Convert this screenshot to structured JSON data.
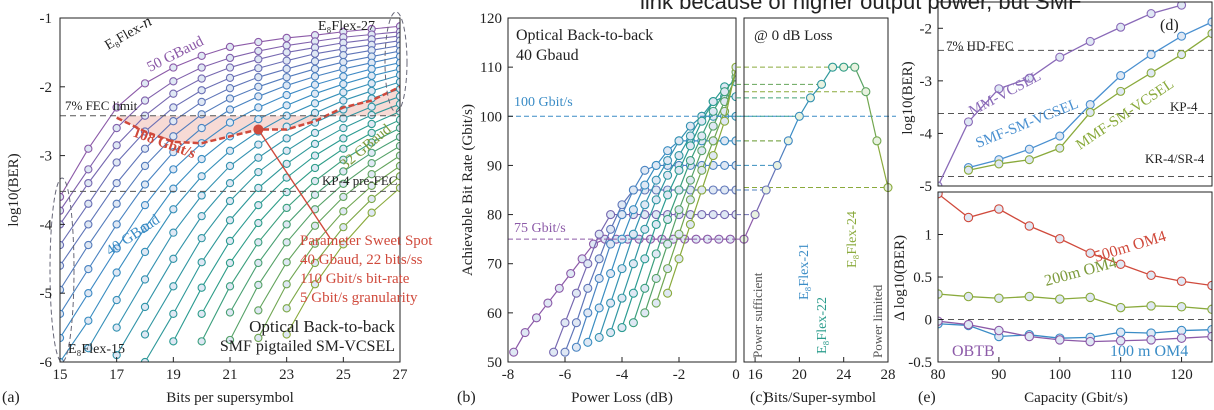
{
  "header_fragment": "link because of higher output power, but SMF",
  "colors": {
    "purple": "#8c5aa8",
    "blue": "#3a8cc6",
    "teal": "#2a9c8c",
    "green": "#8aaa3c",
    "olive": "#7c9a3a",
    "red": "#d04a3c",
    "red_fill": "#f6d6d0",
    "mm_purple": "#8a6ab8",
    "smf_blue": "#4a90d0",
    "mmf_green": "#8aaa3c"
  },
  "chart_data": [
    {
      "panel": "a",
      "type": "line",
      "panel_label": "(a)",
      "xlabel": "Bits per supersymbol",
      "ylabel": "log10(BER)",
      "xlim": [
        15,
        27
      ],
      "ylim": [
        -6,
        -1
      ],
      "xticks": [
        "15",
        "17",
        "19",
        "21",
        "23",
        "25",
        "27"
      ],
      "yticks": [
        "-1",
        "-2",
        "-3",
        "-4",
        "-5",
        "-6"
      ],
      "x": [
        15,
        16,
        17,
        18,
        19,
        20,
        21,
        22,
        23,
        24,
        25,
        26,
        27
      ],
      "series": [
        {
          "values": [
            -3.6,
            -2.9,
            -2.3,
            -1.95,
            -1.72,
            -1.55,
            -1.42,
            -1.35,
            -1.29,
            -1.25,
            -1.2,
            -1.16,
            -1.12
          ]
        },
        {
          "values": [
            -3.8,
            -3.2,
            -2.6,
            -2.2,
            -1.92,
            -1.72,
            -1.58,
            -1.48,
            -1.4,
            -1.34,
            -1.28,
            -1.24,
            -1.2
          ]
        },
        {
          "values": [
            -4.0,
            -3.4,
            -2.85,
            -2.42,
            -2.1,
            -1.88,
            -1.72,
            -1.6,
            -1.5,
            -1.43,
            -1.36,
            -1.31,
            -1.26
          ]
        },
        {
          "values": [
            -4.3,
            -3.7,
            -3.1,
            -2.65,
            -2.3,
            -2.05,
            -1.87,
            -1.73,
            -1.62,
            -1.52,
            -1.45,
            -1.39,
            -1.33
          ]
        },
        {
          "values": [
            -4.6,
            -4.0,
            -3.4,
            -2.9,
            -2.5,
            -2.22,
            -2.02,
            -1.86,
            -1.74,
            -1.63,
            -1.54,
            -1.47,
            -1.4
          ]
        },
        {
          "values": [
            -4.95,
            -4.3,
            -3.7,
            -3.15,
            -2.72,
            -2.4,
            -2.17,
            -2.0,
            -1.86,
            -1.74,
            -1.64,
            -1.56,
            -1.48
          ]
        },
        {
          "values": [
            -5.3,
            -4.65,
            -4.0,
            -3.42,
            -2.95,
            -2.6,
            -2.33,
            -2.14,
            -1.98,
            -1.85,
            -1.74,
            -1.65,
            -1.56
          ]
        },
        {
          "values": [
            -5.65,
            -5.0,
            -4.35,
            -3.72,
            -3.2,
            -2.82,
            -2.52,
            -2.3,
            -2.12,
            -1.97,
            -1.85,
            -1.74,
            -1.65
          ]
        },
        {
          "values": [
            -6.0,
            -5.4,
            -4.7,
            -4.05,
            -3.48,
            -3.05,
            -2.72,
            -2.47,
            -2.27,
            -2.1,
            -1.96,
            -1.84,
            -1.74
          ]
        },
        {
          "values": [
            null,
            -5.8,
            -5.1,
            -4.4,
            -3.78,
            -3.3,
            -2.93,
            -2.65,
            -2.42,
            -2.24,
            -2.08,
            -1.95,
            -1.83
          ]
        },
        {
          "values": [
            null,
            null,
            -5.5,
            -4.8,
            -4.12,
            -3.58,
            -3.15,
            -2.84,
            -2.58,
            -2.38,
            -2.2,
            -2.06,
            -1.93
          ]
        },
        {
          "values": [
            null,
            null,
            -5.9,
            -5.2,
            -4.5,
            -3.88,
            -3.4,
            -3.03,
            -2.75,
            -2.52,
            -2.33,
            -2.17,
            -2.03
          ]
        },
        {
          "values": [
            null,
            null,
            null,
            -5.6,
            -4.9,
            -4.2,
            -3.66,
            -3.24,
            -2.93,
            -2.67,
            -2.46,
            -2.29,
            -2.14
          ]
        },
        {
          "values": [
            null,
            null,
            null,
            -6.0,
            -5.3,
            -4.55,
            -3.94,
            -3.47,
            -3.12,
            -2.83,
            -2.6,
            -2.41,
            -2.25
          ]
        },
        {
          "values": [
            null,
            null,
            null,
            null,
            -5.7,
            -4.92,
            -4.24,
            -3.72,
            -3.32,
            -3.0,
            -2.75,
            -2.54,
            -2.36
          ]
        },
        {
          "values": [
            null,
            null,
            null,
            null,
            null,
            -5.3,
            -4.56,
            -3.98,
            -3.53,
            -3.18,
            -2.9,
            -2.67,
            -2.48
          ]
        },
        {
          "values": [
            null,
            null,
            null,
            null,
            null,
            -5.7,
            -4.9,
            -4.26,
            -3.76,
            -3.37,
            -3.06,
            -2.81,
            -2.6
          ]
        },
        {
          "values": [
            null,
            null,
            null,
            null,
            null,
            null,
            -5.28,
            -4.56,
            -4.0,
            -3.57,
            -3.23,
            -2.96,
            -2.73
          ]
        },
        {
          "values": [
            null,
            null,
            null,
            null,
            null,
            null,
            -5.68,
            -4.88,
            -4.26,
            -3.78,
            -3.41,
            -3.11,
            -2.86
          ]
        },
        {
          "values": [
            null,
            null,
            null,
            null,
            null,
            null,
            null,
            -5.25,
            -4.55,
            -4.02,
            -3.6,
            -3.27,
            -3.0
          ]
        },
        {
          "values": [
            null,
            null,
            null,
            null,
            null,
            null,
            null,
            -5.65,
            -4.87,
            -4.28,
            -3.81,
            -3.44,
            -3.15
          ]
        },
        {
          "values": [
            null,
            null,
            null,
            null,
            null,
            null,
            null,
            null,
            -5.22,
            -4.56,
            -4.04,
            -3.63,
            -3.3
          ]
        },
        {
          "values": [
            null,
            null,
            null,
            null,
            null,
            null,
            null,
            null,
            -5.6,
            -4.87,
            -4.29,
            -3.83,
            -3.47
          ]
        }
      ],
      "sweet_spot_curve": {
        "x": [
          17,
          18,
          19,
          20,
          21,
          22,
          23,
          24,
          25,
          26,
          27
        ],
        "y": [
          -2.45,
          -2.65,
          -2.8,
          -2.82,
          -2.72,
          -2.62,
          -2.62,
          -2.5,
          -2.3,
          -2.2,
          -2.0
        ]
      },
      "sweet_spot_point": {
        "x": 22,
        "y": -2.62
      },
      "fec_limit": -2.42,
      "kp4_limit": -3.52,
      "labels": {
        "family": "E₈Flex-𝑛",
        "baud50": "50 GBaud",
        "flex27": "E₈Flex-27",
        "fec": "7% FEC limit",
        "rate108": "108 Gbit/s",
        "baud32": "32 GBaud",
        "kp4": "KP-4 pre-FEC",
        "baud40": "40 GBaud",
        "sweet_title": "Parameter Sweet Spot",
        "sweet_line1": "40 Gbaud, 22 bits/ss",
        "sweet_line2": "110 Gbit/s bit-rate",
        "sweet_line3": "5 Gbit/s granularity",
        "btb_line1": "Optical Back-to-back",
        "btb_line2": "SMF pigtailed SM-VCSEL",
        "flex15": "E₈Flex-15"
      }
    },
    {
      "panel": "b",
      "type": "line",
      "panel_label": "(b)",
      "xlabel": "Power Loss (dB)",
      "ylabel": "Achievable Bit Rate (Gbit/s)",
      "xlim": [
        -8,
        0
      ],
      "ylim": [
        50,
        120
      ],
      "xticks": [
        "-8",
        "-6",
        "-4",
        "-2",
        "0"
      ],
      "yticks": [
        "50",
        "60",
        "70",
        "80",
        "90",
        "100",
        "110",
        "120"
      ],
      "title_line1": "Optical Back-to-back",
      "title_line2": "40 Gbaud",
      "ref_100": "100 Gbit/s",
      "ref_75": "75 Gbit/s",
      "series": [
        {
          "x": [
            -7.8,
            -7.4,
            -7.0,
            -6.6,
            -6.2,
            -5.8,
            -5.4,
            -5.0,
            -4.6,
            -4.2,
            -3.8,
            -3.4,
            -3.0,
            -2.6,
            -2.2,
            -1.8,
            -1.4,
            -1.0,
            -0.6,
            -0.2
          ],
          "y": [
            52,
            56,
            59,
            62,
            65,
            68,
            71,
            74,
            75,
            75,
            75,
            75,
            75,
            75,
            75,
            75,
            75,
            75,
            75,
            75
          ]
        },
        {
          "x": [
            -6.4,
            -6.0,
            -5.6,
            -5.2,
            -4.8,
            -4.4,
            -4.0,
            -3.6,
            -3.2,
            -2.8,
            -2.4,
            -2.0,
            -1.6,
            -1.2,
            -0.8,
            -0.4,
            0
          ],
          "y": [
            52,
            58,
            64,
            70,
            76,
            80,
            80,
            80,
            80,
            80,
            80,
            80,
            80,
            80,
            80,
            80,
            80
          ]
        },
        {
          "x": [
            -6.0,
            -5.6,
            -5.2,
            -4.8,
            -4.4,
            -4.0,
            -3.6,
            -3.2,
            -2.8,
            -2.4,
            -2.0,
            -1.6,
            -1.2,
            -0.8,
            -0.4,
            0
          ],
          "y": [
            52,
            58,
            65,
            71,
            77,
            82,
            85,
            85,
            85,
            85,
            85,
            85,
            85,
            85,
            85,
            85
          ]
        },
        {
          "x": [
            -5.6,
            -5.2,
            -4.8,
            -4.4,
            -4.0,
            -3.6,
            -3.2,
            -2.8,
            -2.4,
            -2.0,
            -1.6,
            -1.2,
            -0.8,
            -0.4,
            0
          ],
          "y": [
            53,
            60,
            67,
            74,
            80,
            85,
            89,
            90,
            90,
            90,
            90,
            90,
            90,
            90,
            90
          ]
        },
        {
          "x": [
            -5.2,
            -4.8,
            -4.4,
            -4.0,
            -3.6,
            -3.2,
            -2.8,
            -2.4,
            -2.0,
            -1.6,
            -1.2,
            -0.8,
            -0.4,
            0
          ],
          "y": [
            54,
            61,
            68,
            75,
            81,
            86,
            90,
            93,
            95,
            95,
            95,
            95,
            95,
            95
          ]
        },
        {
          "x": [
            -4.8,
            -4.4,
            -4.0,
            -3.6,
            -3.2,
            -2.8,
            -2.4,
            -2.0,
            -1.6,
            -1.2,
            -0.8,
            -0.4,
            0
          ],
          "y": [
            55,
            62,
            69,
            76,
            82,
            87,
            91,
            95,
            98,
            100,
            100,
            100,
            100
          ]
        },
        {
          "x": [
            -4.4,
            -4.0,
            -3.6,
            -3.2,
            -2.8,
            -2.4,
            -2.0,
            -1.6,
            -1.2,
            -0.8,
            -0.4,
            0
          ],
          "y": [
            56,
            63,
            70,
            77,
            83,
            88,
            92,
            96,
            100,
            103,
            104,
            104
          ]
        },
        {
          "x": [
            -4.0,
            -3.6,
            -3.2,
            -2.8,
            -2.4,
            -2.0,
            -1.6,
            -1.2,
            -0.8,
            -0.4,
            0
          ],
          "y": [
            57,
            64,
            71,
            78,
            84,
            89,
            94,
            99,
            103,
            106,
            107
          ]
        },
        {
          "x": [
            -3.6,
            -3.2,
            -2.8,
            -2.4,
            -2.0,
            -1.6,
            -1.2,
            -0.8,
            -0.4,
            0
          ],
          "y": [
            58,
            65,
            72,
            79,
            85,
            91,
            96,
            101,
            105,
            108
          ]
        },
        {
          "x": [
            -3.2,
            -2.8,
            -2.4,
            -2.0,
            -1.6,
            -1.2,
            -0.8,
            -0.4,
            0
          ],
          "y": [
            60,
            67,
            74,
            81,
            87,
            93,
            98,
            103,
            108
          ]
        },
        {
          "x": [
            -2.8,
            -2.4,
            -2.0,
            -1.6,
            -1.2,
            -0.8,
            -0.4,
            0
          ],
          "y": [
            62,
            69,
            76,
            83,
            89,
            95,
            101,
            109
          ]
        },
        {
          "x": [
            -2.4,
            -2.0,
            -1.6,
            -1.2,
            -0.8,
            -0.4,
            0
          ],
          "y": [
            64,
            71,
            78,
            85,
            92,
            99,
            110
          ]
        }
      ]
    },
    {
      "panel": "c",
      "type": "line",
      "panel_label": "(c)",
      "xlabel": "Bits/Super-symbol",
      "xlim": [
        15,
        28
      ],
      "ylim": [
        50,
        120
      ],
      "xticks": [
        "16",
        "20",
        "24",
        "28"
      ],
      "title": "@ 0 dB Loss",
      "label_sufficient": "Power sufficient",
      "label_limited": "Power limited",
      "label_flex21": "E₈Flex-21",
      "label_flex22": "E₈Flex-22",
      "label_flex24": "E₈Flex-24",
      "x": [
        15,
        16,
        17,
        18,
        19,
        20,
        21,
        22,
        23,
        24,
        25,
        26,
        27,
        28
      ],
      "y": [
        75,
        80,
        85,
        90,
        95,
        100,
        103.75,
        106.5,
        110,
        110,
        110,
        105,
        95,
        85.5
      ]
    },
    {
      "panel": "d",
      "type": "line",
      "panel_label": "(d)",
      "ylabel": "log10(BER)",
      "xlim": [
        80,
        125
      ],
      "ylim": [
        -5,
        -1.5
      ],
      "yticks": [
        "-2",
        "-3",
        "-4",
        "-5"
      ],
      "x": [
        80,
        85,
        90,
        95,
        100,
        105,
        110,
        115,
        120,
        125
      ],
      "series": [
        {
          "name": "MM-VCSEL",
          "values": [
            -5.0,
            -3.78,
            -3.15,
            -2.95,
            -2.55,
            -2.25,
            -1.98,
            -1.72,
            -1.56,
            null
          ]
        },
        {
          "name": "SMF-SM-VCSEL",
          "values": [
            null,
            -4.65,
            -4.5,
            -4.3,
            -4.05,
            -3.45,
            -2.9,
            -2.5,
            -2.15,
            -1.88
          ]
        },
        {
          "name": "MMF-SM-VCSEL",
          "values": [
            null,
            -4.7,
            -4.58,
            -4.5,
            -4.28,
            -3.6,
            -3.2,
            -2.85,
            -2.5,
            -2.1
          ]
        }
      ],
      "hdfec": -2.42,
      "kp4": -3.62,
      "kr4": -4.82,
      "label_hdfec": "7% HD-FEC",
      "label_kp4": "KP-4",
      "label_kr4": "KR-4/SR-4"
    },
    {
      "panel": "e",
      "type": "line",
      "panel_label": "(e)",
      "xlabel": "Capacity (Gbit/s)",
      "ylabel": "Δ log10(BER)",
      "xlim": [
        80,
        125
      ],
      "ylim": [
        -0.5,
        1.5
      ],
      "xticks": [
        "80",
        "90",
        "100",
        "110",
        "120"
      ],
      "yticks": [
        "1",
        "0.5",
        "0",
        "-0.5"
      ],
      "x": [
        80,
        85,
        90,
        95,
        100,
        105,
        110,
        115,
        120,
        125
      ],
      "series": [
        {
          "name": "500m OM4",
          "values": [
            1.48,
            1.2,
            1.3,
            1.1,
            0.95,
            0.78,
            0.65,
            0.52,
            0.45,
            0.4
          ]
        },
        {
          "name": "200m OM4",
          "values": [
            0.3,
            0.27,
            0.25,
            0.27,
            0.24,
            0.26,
            0.14,
            0.16,
            0.15,
            0.12
          ]
        },
        {
          "name": "100 m OM4",
          "values": [
            -0.05,
            -0.07,
            -0.2,
            -0.18,
            -0.22,
            -0.21,
            -0.15,
            -0.16,
            -0.13,
            -0.12
          ]
        },
        {
          "name": "OBTB",
          "values": [
            -0.02,
            -0.06,
            -0.13,
            -0.2,
            -0.24,
            -0.26,
            -0.25,
            -0.24,
            -0.22,
            -0.2
          ]
        }
      ],
      "label_obtb": "OBTB"
    }
  ]
}
